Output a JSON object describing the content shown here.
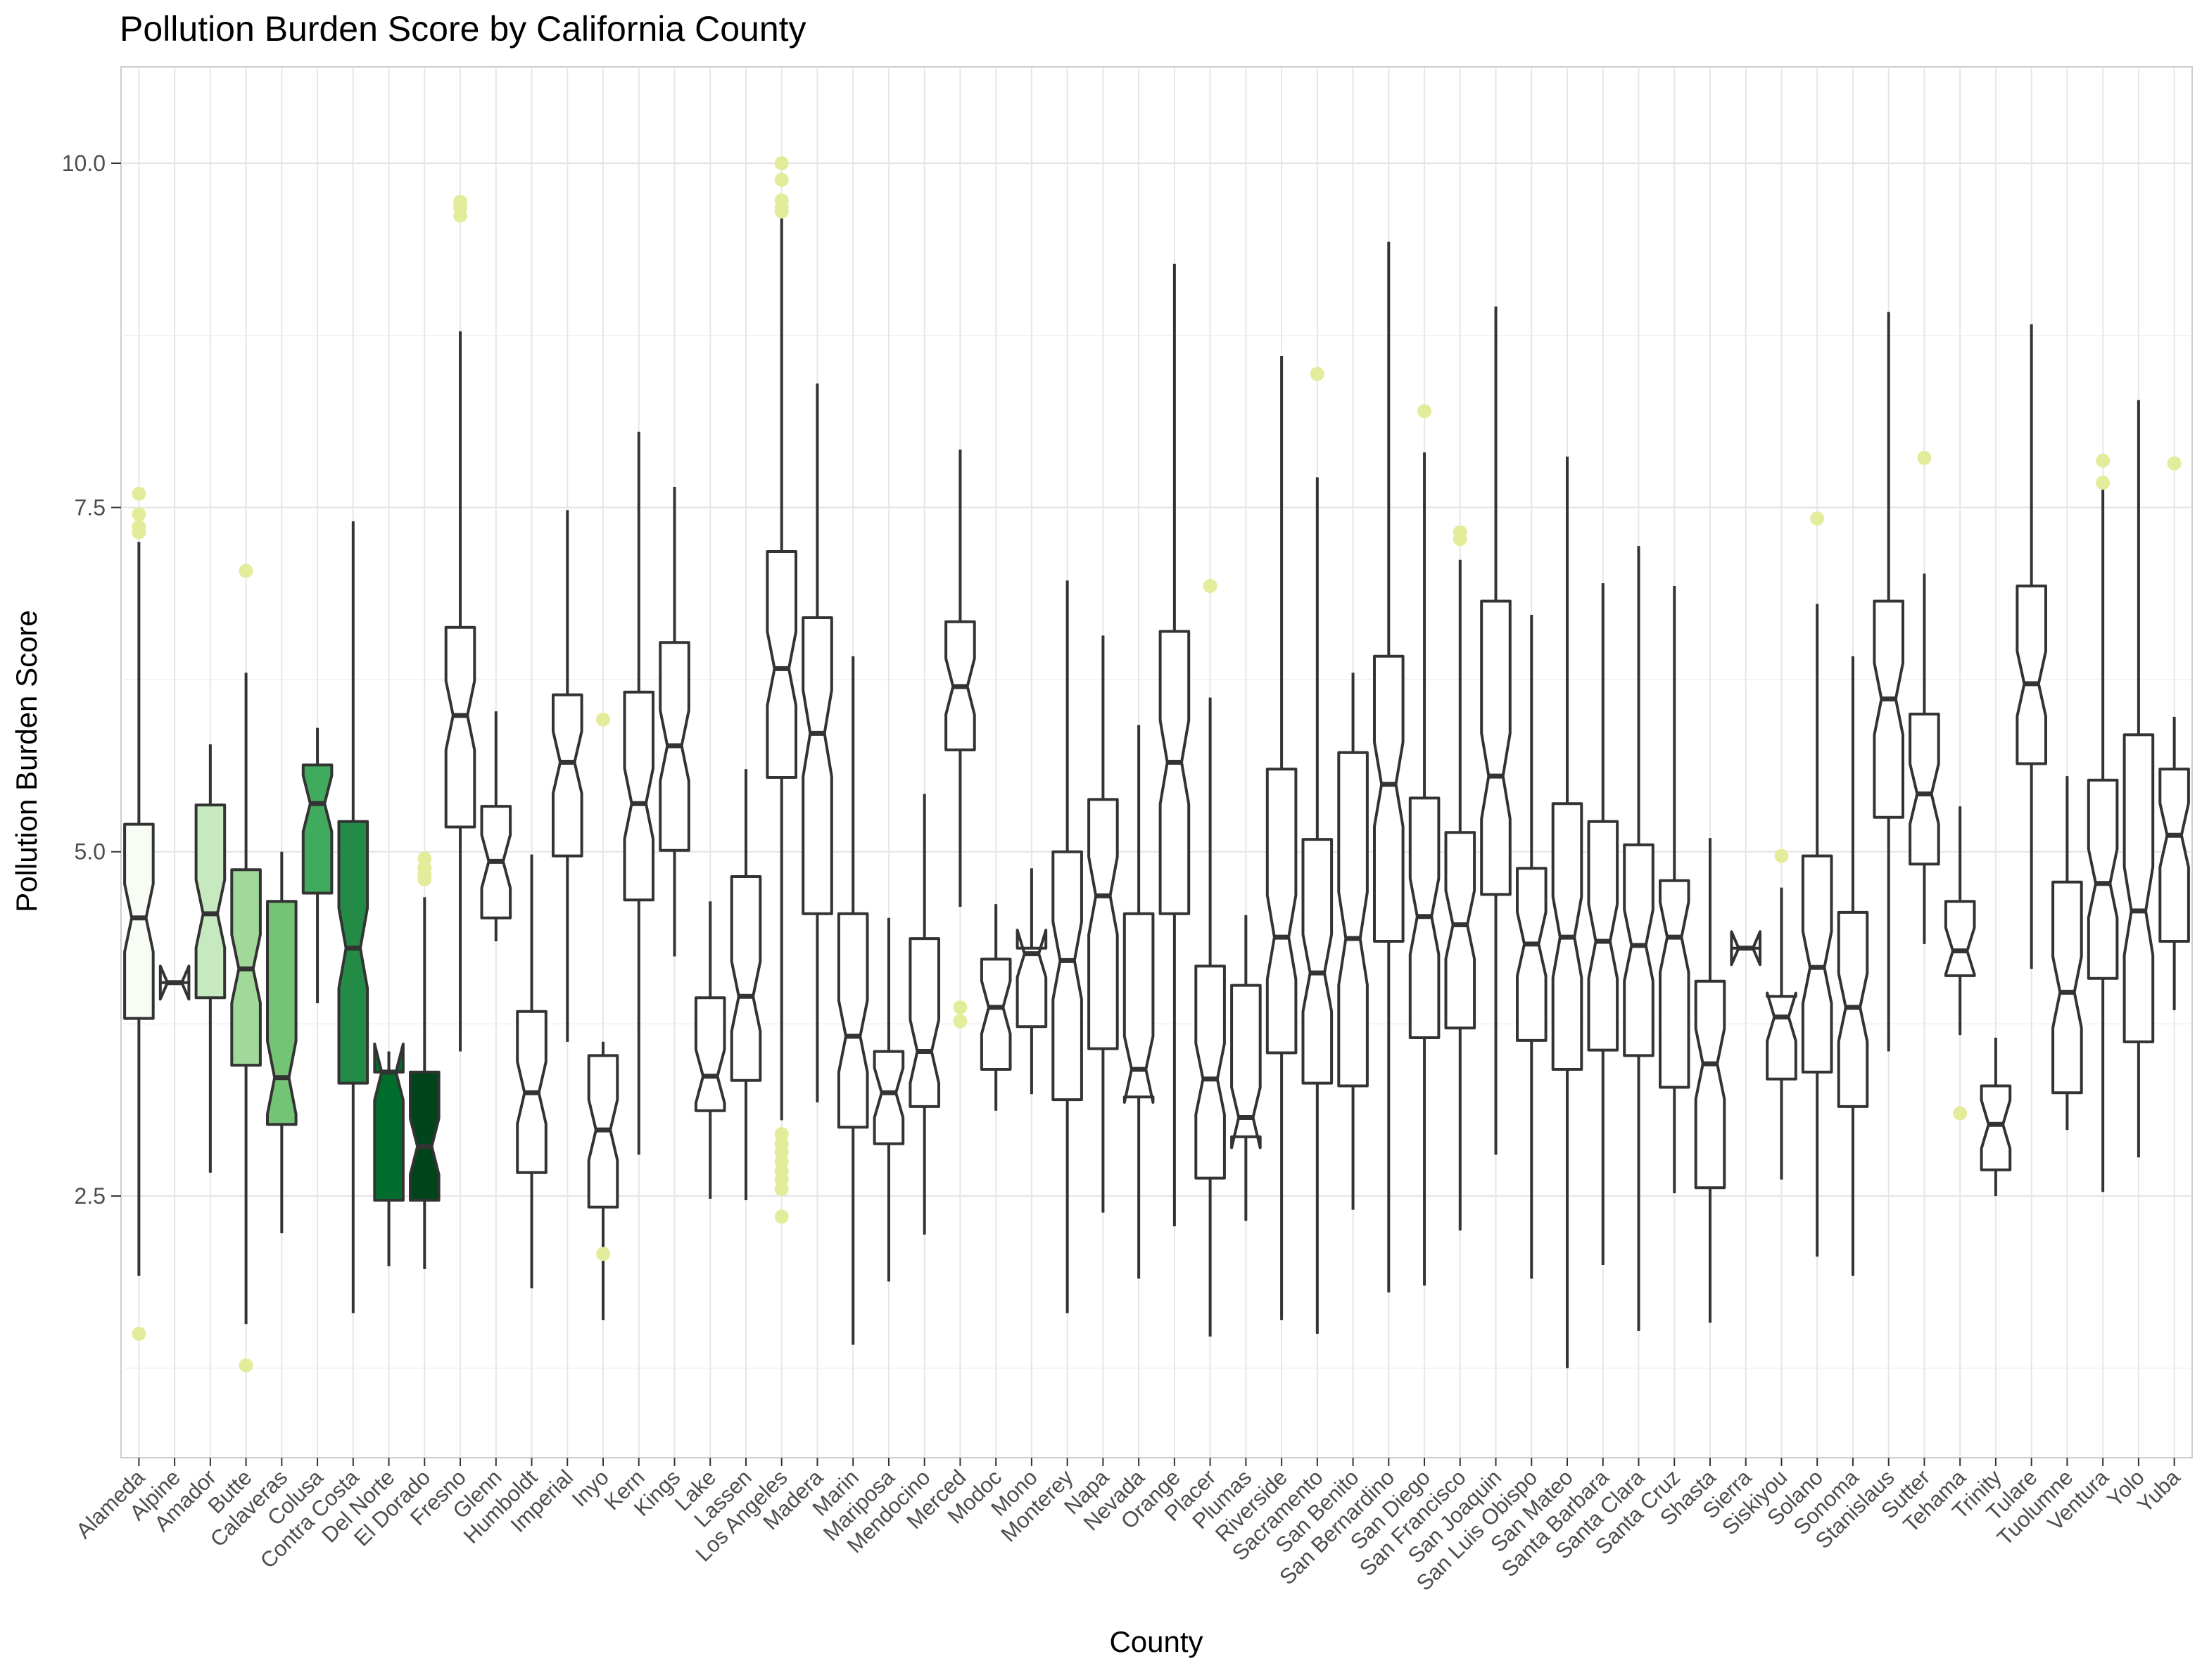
{
  "chart_data": {
    "type": "box",
    "title": "Pollution Burden Score by California County",
    "xlabel": "County",
    "ylabel": "Pollution Burden Score",
    "ylim": [
      0.6,
      10.7
    ],
    "yticks": [
      2.5,
      5.0,
      7.5,
      10.0
    ],
    "ytick_labels": [
      "2.5",
      "5.0",
      "7.5",
      "10.0"
    ],
    "grid": true,
    "notched": true,
    "outlier_color": "#e3ec9a",
    "box_line_color": "#333333",
    "categories": [
      "Alameda",
      "Alpine",
      "Amador",
      "Butte",
      "Calaveras",
      "Colusa",
      "Contra Costa",
      "Del Norte",
      "El Dorado",
      "Fresno",
      "Glenn",
      "Humboldt",
      "Imperial",
      "Inyo",
      "Kern",
      "Kings",
      "Lake",
      "Lassen",
      "Los Angeles",
      "Madera",
      "Marin",
      "Mariposa",
      "Mendocino",
      "Merced",
      "Modoc",
      "Mono",
      "Monterey",
      "Napa",
      "Nevada",
      "Orange",
      "Placer",
      "Plumas",
      "Riverside",
      "Sacramento",
      "San Benito",
      "San Bernardino",
      "San Diego",
      "San Francisco",
      "San Joaquin",
      "San Luis Obispo",
      "San Mateo",
      "Santa Barbara",
      "Santa Clara",
      "Santa Cruz",
      "Shasta",
      "Sierra",
      "Siskiyou",
      "Solano",
      "Sonoma",
      "Stanislaus",
      "Sutter",
      "Tehama",
      "Trinity",
      "Tulare",
      "Tuolumne",
      "Ventura",
      "Yolo",
      "Yuba"
    ],
    "fills": [
      "#f7fcf5",
      "#f7fcf5",
      "#c7e9c0",
      "#a1d99b",
      "#74c476",
      "#41ab5d",
      "#238b45",
      "#006d2c",
      "#00441b",
      "#ffffff",
      "#ffffff",
      "#ffffff",
      "#ffffff",
      "#ffffff",
      "#ffffff",
      "#ffffff",
      "#ffffff",
      "#ffffff",
      "#ffffff",
      "#ffffff",
      "#ffffff",
      "#ffffff",
      "#ffffff",
      "#ffffff",
      "#ffffff",
      "#ffffff",
      "#ffffff",
      "#ffffff",
      "#ffffff",
      "#ffffff",
      "#ffffff",
      "#ffffff",
      "#ffffff",
      "#ffffff",
      "#ffffff",
      "#ffffff",
      "#ffffff",
      "#ffffff",
      "#ffffff",
      "#ffffff",
      "#ffffff",
      "#ffffff",
      "#ffffff",
      "#ffffff",
      "#ffffff",
      "#ffffff",
      "#ffffff",
      "#ffffff",
      "#ffffff",
      "#ffffff",
      "#ffffff",
      "#ffffff",
      "#ffffff",
      "#ffffff",
      "#ffffff",
      "#ffffff",
      "#ffffff",
      "#ffffff"
    ],
    "boxes": [
      {
        "min": 1.92,
        "q1": 3.79,
        "median": 4.52,
        "q3": 5.2,
        "max": 7.25,
        "outliers": [
          7.6,
          7.45,
          7.36,
          7.32,
          1.5
        ]
      },
      {
        "min": 4.05,
        "q1": 4.05,
        "median": 4.05,
        "q3": 4.05,
        "max": 4.05,
        "outliers": []
      },
      {
        "min": 2.67,
        "q1": 3.94,
        "median": 4.55,
        "q3": 5.34,
        "max": 5.78,
        "outliers": []
      },
      {
        "min": 1.57,
        "q1": 3.45,
        "median": 4.15,
        "q3": 4.87,
        "max": 6.3,
        "outliers": [
          7.04,
          1.27
        ]
      },
      {
        "min": 2.23,
        "q1": 3.02,
        "median": 3.36,
        "q3": 4.64,
        "max": 5.0,
        "outliers": []
      },
      {
        "min": 3.9,
        "q1": 4.7,
        "median": 5.35,
        "q3": 5.63,
        "max": 5.9,
        "outliers": []
      },
      {
        "min": 1.65,
        "q1": 3.32,
        "median": 4.3,
        "q3": 5.22,
        "max": 7.4,
        "outliers": []
      },
      {
        "min": 1.99,
        "q1": 2.47,
        "median": 3.4,
        "q3": 3.4,
        "max": 3.55,
        "outliers": []
      },
      {
        "min": 1.97,
        "q1": 2.47,
        "median": 2.86,
        "q3": 3.4,
        "max": 4.67,
        "outliers": [
          4.95,
          4.88,
          4.83,
          4.8
        ]
      },
      {
        "min": 3.55,
        "q1": 5.18,
        "median": 5.99,
        "q3": 6.63,
        "max": 8.78,
        "outliers": [
          9.72,
          9.68,
          9.62
        ]
      },
      {
        "min": 4.35,
        "q1": 4.52,
        "median": 4.93,
        "q3": 5.33,
        "max": 6.02,
        "outliers": []
      },
      {
        "min": 1.83,
        "q1": 2.67,
        "median": 3.25,
        "q3": 3.84,
        "max": 4.98,
        "outliers": []
      },
      {
        "min": 3.62,
        "q1": 4.97,
        "median": 5.65,
        "q3": 6.14,
        "max": 7.48,
        "outliers": []
      },
      {
        "min": 1.6,
        "q1": 2.42,
        "median": 2.98,
        "q3": 3.52,
        "max": 3.62,
        "outliers": [
          5.96,
          2.08
        ]
      },
      {
        "min": 2.8,
        "q1": 4.65,
        "median": 5.35,
        "q3": 6.16,
        "max": 8.05,
        "outliers": []
      },
      {
        "min": 4.24,
        "q1": 5.01,
        "median": 5.77,
        "q3": 6.52,
        "max": 7.65,
        "outliers": []
      },
      {
        "min": 2.48,
        "q1": 3.12,
        "median": 3.37,
        "q3": 3.94,
        "max": 4.64,
        "outliers": []
      },
      {
        "min": 2.47,
        "q1": 3.34,
        "median": 3.95,
        "q3": 4.82,
        "max": 5.6,
        "outliers": []
      },
      {
        "min": 3.05,
        "q1": 5.54,
        "median": 6.33,
        "q3": 7.18,
        "max": 9.6,
        "outliers": [
          10.0,
          9.88,
          9.73,
          9.68,
          9.65,
          2.95,
          2.88,
          2.82,
          2.75,
          2.68,
          2.62,
          2.55,
          2.35
        ]
      },
      {
        "min": 3.18,
        "q1": 4.55,
        "median": 5.86,
        "q3": 6.7,
        "max": 8.4,
        "outliers": []
      },
      {
        "min": 1.42,
        "q1": 3.0,
        "median": 3.66,
        "q3": 4.55,
        "max": 6.42,
        "outliers": []
      },
      {
        "min": 1.88,
        "q1": 2.88,
        "median": 3.25,
        "q3": 3.55,
        "max": 4.52,
        "outliers": []
      },
      {
        "min": 2.22,
        "q1": 3.15,
        "median": 3.55,
        "q3": 4.37,
        "max": 5.42,
        "outliers": []
      },
      {
        "min": 4.6,
        "q1": 5.74,
        "median": 6.2,
        "q3": 6.67,
        "max": 7.92,
        "outliers": [
          3.87,
          3.77
        ]
      },
      {
        "min": 3.12,
        "q1": 3.42,
        "median": 3.87,
        "q3": 4.22,
        "max": 4.62,
        "outliers": []
      },
      {
        "min": 3.24,
        "q1": 3.73,
        "median": 4.26,
        "q3": 4.3,
        "max": 4.88,
        "outliers": []
      },
      {
        "min": 1.65,
        "q1": 3.2,
        "median": 4.21,
        "q3": 5.0,
        "max": 6.97,
        "outliers": []
      },
      {
        "min": 2.38,
        "q1": 3.57,
        "median": 4.68,
        "q3": 5.38,
        "max": 6.57,
        "outliers": []
      },
      {
        "min": 1.9,
        "q1": 3.22,
        "median": 3.42,
        "q3": 4.55,
        "max": 5.92,
        "outliers": []
      },
      {
        "min": 2.28,
        "q1": 4.55,
        "median": 5.65,
        "q3": 6.6,
        "max": 9.27,
        "outliers": []
      },
      {
        "min": 1.48,
        "q1": 2.63,
        "median": 3.35,
        "q3": 4.17,
        "max": 6.12,
        "outliers": [
          6.93
        ]
      },
      {
        "min": 2.32,
        "q1": 2.93,
        "median": 3.07,
        "q3": 4.03,
        "max": 4.54,
        "outliers": []
      },
      {
        "min": 1.6,
        "q1": 3.54,
        "median": 4.38,
        "q3": 5.6,
        "max": 8.6,
        "outliers": []
      },
      {
        "min": 1.5,
        "q1": 3.32,
        "median": 4.12,
        "q3": 5.09,
        "max": 7.72,
        "outliers": [
          8.47
        ]
      },
      {
        "min": 2.4,
        "q1": 3.3,
        "median": 4.37,
        "q3": 5.72,
        "max": 6.3,
        "outliers": []
      },
      {
        "min": 1.8,
        "q1": 4.35,
        "median": 5.49,
        "q3": 6.42,
        "max": 9.43,
        "outliers": []
      },
      {
        "min": 1.85,
        "q1": 3.65,
        "median": 4.53,
        "q3": 5.39,
        "max": 7.9,
        "outliers": [
          8.2
        ]
      },
      {
        "min": 2.25,
        "q1": 3.72,
        "median": 4.47,
        "q3": 5.14,
        "max": 7.12,
        "outliers": [
          7.32,
          7.27
        ]
      },
      {
        "min": 2.8,
        "q1": 4.69,
        "median": 5.55,
        "q3": 6.82,
        "max": 8.96,
        "outliers": []
      },
      {
        "min": 1.9,
        "q1": 3.63,
        "median": 4.33,
        "q3": 4.88,
        "max": 6.72,
        "outliers": []
      },
      {
        "min": 1.25,
        "q1": 3.42,
        "median": 4.38,
        "q3": 5.35,
        "max": 7.87,
        "outliers": []
      },
      {
        "min": 2.0,
        "q1": 3.56,
        "median": 4.35,
        "q3": 5.22,
        "max": 6.95,
        "outliers": []
      },
      {
        "min": 1.52,
        "q1": 3.52,
        "median": 4.32,
        "q3": 5.05,
        "max": 7.22,
        "outliers": []
      },
      {
        "min": 2.52,
        "q1": 3.29,
        "median": 4.38,
        "q3": 4.79,
        "max": 6.93,
        "outliers": []
      },
      {
        "min": 1.58,
        "q1": 2.56,
        "median": 3.46,
        "q3": 4.06,
        "max": 5.1,
        "outliers": []
      },
      {
        "min": 4.3,
        "q1": 4.3,
        "median": 4.3,
        "q3": 4.3,
        "max": 4.3,
        "outliers": []
      },
      {
        "min": 2.62,
        "q1": 3.35,
        "median": 3.8,
        "q3": 3.95,
        "max": 4.74,
        "outliers": [
          4.97
        ]
      },
      {
        "min": 2.06,
        "q1": 3.4,
        "median": 4.16,
        "q3": 4.97,
        "max": 6.8,
        "outliers": [
          7.42
        ]
      },
      {
        "min": 1.92,
        "q1": 3.15,
        "median": 3.87,
        "q3": 4.56,
        "max": 6.42,
        "outliers": []
      },
      {
        "min": 3.55,
        "q1": 5.25,
        "median": 6.11,
        "q3": 6.82,
        "max": 8.92,
        "outliers": []
      },
      {
        "min": 4.33,
        "q1": 4.91,
        "median": 5.42,
        "q3": 6.0,
        "max": 7.02,
        "outliers": [
          7.86
        ]
      },
      {
        "min": 3.67,
        "q1": 4.1,
        "median": 4.28,
        "q3": 4.64,
        "max": 5.33,
        "outliers": [
          3.1
        ]
      },
      {
        "min": 2.5,
        "q1": 2.69,
        "median": 3.02,
        "q3": 3.3,
        "max": 3.65,
        "outliers": []
      },
      {
        "min": 4.15,
        "q1": 5.64,
        "median": 6.22,
        "q3": 6.93,
        "max": 8.83,
        "outliers": []
      },
      {
        "min": 2.98,
        "q1": 3.25,
        "median": 3.98,
        "q3": 4.78,
        "max": 5.55,
        "outliers": []
      },
      {
        "min": 2.53,
        "q1": 4.08,
        "median": 4.77,
        "q3": 5.52,
        "max": 7.65,
        "outliers": [
          7.84,
          7.68
        ]
      },
      {
        "min": 2.78,
        "q1": 3.62,
        "median": 4.57,
        "q3": 5.85,
        "max": 8.28,
        "outliers": []
      },
      {
        "min": 3.85,
        "q1": 4.35,
        "median": 5.12,
        "q3": 5.6,
        "max": 5.98,
        "outliers": [
          7.82
        ]
      }
    ]
  }
}
